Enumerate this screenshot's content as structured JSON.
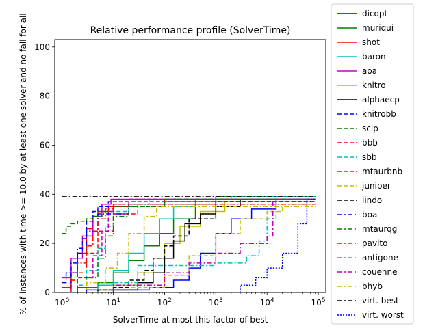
{
  "chart_data": {
    "type": "line",
    "title": "Relative performance profile (SolverTime)",
    "xlabel": "SolverTime at most this factor of best",
    "ylabel": "% of instances with time >= 10.0 by at least one solver and no fail for all",
    "x_scale": "log",
    "xlim": [
      0.72,
      140000
    ],
    "ylim": [
      0,
      103
    ],
    "x_ticks": [
      1,
      10,
      100,
      1000,
      10000,
      100000
    ],
    "x_tick_labels": [
      "10^0",
      "10^1",
      "10^2",
      "10^3",
      "10^4",
      "10^5"
    ],
    "y_ticks": [
      0,
      20,
      40,
      60,
      80,
      100
    ],
    "y_tick_labels": [
      "0",
      "20",
      "40",
      "60",
      "80",
      "100"
    ],
    "grid": false,
    "legend_position": "outside-right",
    "series": [
      {
        "name": "dicopt",
        "color": "#0000ff",
        "dash": "solid",
        "x": [
          1,
          3,
          10,
          50,
          150,
          300,
          500,
          1000,
          2000,
          5000,
          15000,
          90000
        ],
        "y": [
          0,
          1,
          1,
          2,
          5,
          10,
          16,
          24,
          30,
          34,
          38,
          38
        ]
      },
      {
        "name": "muriqui",
        "color": "#008000",
        "dash": "solid",
        "x": [
          1,
          2,
          5,
          10,
          20,
          40,
          80,
          150,
          400,
          1000,
          90000
        ],
        "y": [
          0,
          2,
          4,
          8,
          13,
          19,
          24,
          30,
          36,
          39,
          39
        ]
      },
      {
        "name": "shot",
        "color": "#ff0000",
        "dash": "solid",
        "x": [
          1,
          1.5,
          2,
          3,
          4,
          5,
          8,
          20,
          100,
          90000
        ],
        "y": [
          2,
          8,
          16,
          26,
          31,
          33,
          35,
          36,
          37,
          37
        ]
      },
      {
        "name": "baron",
        "color": "#00bfbf",
        "dash": "solid",
        "x": [
          1,
          5,
          10,
          20,
          40,
          80,
          150,
          400,
          2000,
          90000
        ],
        "y": [
          0,
          3,
          9,
          16,
          24,
          30,
          35,
          38,
          39,
          39
        ]
      },
      {
        "name": "aoa",
        "color": "#bf00bf",
        "dash": "solid",
        "x": [
          1,
          1.5,
          2.5,
          4,
          6,
          9,
          90000
        ],
        "y": [
          6,
          14,
          23,
          31,
          36,
          38,
          38
        ]
      },
      {
        "name": "knitro",
        "color": "#bfbf00",
        "dash": "solid",
        "x": [
          1,
          5,
          10,
          30,
          60,
          100,
          200,
          500,
          1500,
          90000
        ],
        "y": [
          0,
          1,
          3,
          8,
          14,
          20,
          27,
          33,
          37,
          37
        ]
      },
      {
        "name": "alphaecp",
        "color": "#000000",
        "dash": "solid",
        "x": [
          1,
          10,
          30,
          60,
          100,
          150,
          250,
          500,
          1000,
          3000,
          90000
        ],
        "y": [
          0,
          1,
          4,
          8,
          14,
          21,
          28,
          32,
          35,
          38,
          38
        ]
      },
      {
        "name": "knitrobb",
        "color": "#0000ff",
        "dash": "dashed",
        "x": [
          1,
          1.5,
          2,
          2.5,
          3,
          4,
          5,
          8,
          90000
        ],
        "y": [
          0,
          8,
          16,
          22,
          29,
          33,
          35,
          37,
          37
        ]
      },
      {
        "name": "scip",
        "color": "#008000",
        "dash": "dashed",
        "x": [
          1,
          1.2,
          1.5,
          2,
          3,
          4,
          6,
          10,
          100,
          1000,
          90000
        ],
        "y": [
          24,
          27,
          28,
          29,
          30,
          31,
          33,
          35,
          36,
          38,
          38
        ]
      },
      {
        "name": "bbb",
        "color": "#ff0000",
        "dash": "dashed",
        "x": [
          1,
          2,
          3,
          5,
          10,
          30,
          100,
          90000
        ],
        "y": [
          0,
          8,
          16,
          25,
          32,
          36,
          38,
          38
        ]
      },
      {
        "name": "sbb",
        "color": "#00bfbf",
        "dash": "dashed",
        "x": [
          1,
          2,
          3,
          5,
          7,
          10,
          20,
          50,
          90000
        ],
        "y": [
          0,
          3,
          9,
          18,
          27,
          33,
          36,
          38,
          38
        ]
      },
      {
        "name": "mtaurbnb",
        "color": "#bf00bf",
        "dash": "dashed",
        "x": [
          1,
          2,
          4,
          6,
          8,
          10,
          20,
          90000
        ],
        "y": [
          0,
          6,
          15,
          25,
          33,
          36,
          38,
          38
        ]
      },
      {
        "name": "juniper",
        "color": "#bfbf00",
        "dash": "dashed",
        "x": [
          1,
          10,
          100,
          300,
          1000,
          3000,
          10000,
          20000,
          90000
        ],
        "y": [
          0,
          2,
          7,
          15,
          24,
          30,
          33,
          36,
          36
        ]
      },
      {
        "name": "lindo",
        "color": "#000000",
        "dash": "dashed",
        "x": [
          1,
          5,
          10,
          20,
          40,
          60,
          100,
          150,
          300,
          1000,
          90000
        ],
        "y": [
          0,
          1,
          2,
          5,
          9,
          14,
          19,
          23,
          30,
          37,
          37
        ]
      },
      {
        "name": "boa",
        "color": "#0000ff",
        "dash": "dashdot",
        "x": [
          1,
          1.2,
          1.5,
          2,
          3,
          5,
          20,
          90000
        ],
        "y": [
          4,
          8,
          12,
          18,
          25,
          32,
          36,
          36
        ]
      },
      {
        "name": "mtaurqg",
        "color": "#008000",
        "dash": "dashdot",
        "x": [
          1,
          2,
          3,
          5,
          7,
          10,
          20,
          100,
          90000
        ],
        "y": [
          0,
          2,
          6,
          14,
          23,
          31,
          35,
          38,
          38
        ]
      },
      {
        "name": "pavito",
        "color": "#ff0000",
        "dash": "dashdot",
        "x": [
          1,
          1.5,
          2,
          3,
          4,
          5,
          7,
          10,
          90000
        ],
        "y": [
          0,
          5,
          12,
          19,
          25,
          30,
          34,
          36,
          36
        ]
      },
      {
        "name": "antigone",
        "color": "#00bfbf",
        "dash": "dashdot",
        "x": [
          1,
          10,
          30,
          100,
          1000,
          4000,
          7000,
          10000,
          15000,
          90000
        ],
        "y": [
          0,
          4,
          11,
          11,
          12,
          15,
          21,
          30,
          39,
          39
        ]
      },
      {
        "name": "couenne",
        "color": "#bf00bf",
        "dash": "dashdot",
        "x": [
          1,
          10,
          100,
          300,
          1000,
          3000,
          10000,
          13000,
          90000
        ],
        "y": [
          0,
          3,
          8,
          12,
          16,
          20,
          23,
          38,
          38
        ]
      },
      {
        "name": "bhyb",
        "color": "#bfbf00",
        "dash": "dashdot",
        "x": [
          1,
          3,
          7,
          12,
          20,
          40,
          70,
          90000
        ],
        "y": [
          0,
          4,
          10,
          16,
          24,
          31,
          35,
          35
        ]
      },
      {
        "name": "virt. best",
        "color": "#000000",
        "dash": "dashdot",
        "x": [
          1,
          90000
        ],
        "y": [
          39,
          39
        ]
      },
      {
        "name": "virt. worst",
        "color": "#0000ff",
        "dash": "dotted",
        "x": [
          1,
          1000,
          3000,
          6000,
          10000,
          20000,
          40000,
          60000,
          90000
        ],
        "y": [
          0,
          0,
          3,
          6,
          10,
          16,
          28,
          38,
          38
        ]
      }
    ]
  }
}
